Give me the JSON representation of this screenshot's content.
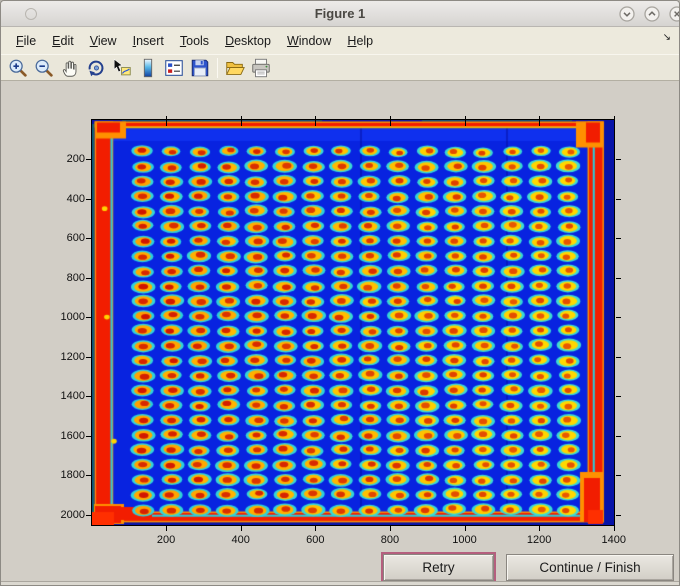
{
  "window": {
    "title": "Figure 1",
    "controls": [
      "minimize",
      "maximize",
      "close"
    ]
  },
  "menubar": {
    "items": [
      {
        "label": "File",
        "mnemonic": "F"
      },
      {
        "label": "Edit",
        "mnemonic": "E"
      },
      {
        "label": "View",
        "mnemonic": "V"
      },
      {
        "label": "Insert",
        "mnemonic": "I"
      },
      {
        "label": "Tools",
        "mnemonic": "T"
      },
      {
        "label": "Desktop",
        "mnemonic": "D"
      },
      {
        "label": "Window",
        "mnemonic": "W"
      },
      {
        "label": "Help",
        "mnemonic": "H"
      }
    ],
    "overflow_arrow": "↘"
  },
  "toolbar": {
    "icons": [
      "zoom-in",
      "zoom-out",
      "pan",
      "rotate-3d",
      "data-cursor",
      "insert-colorbar",
      "insert-legend",
      "save-figure",
      "open-file",
      "print-figure"
    ]
  },
  "buttons": {
    "retry_label": "Retry",
    "continue_label": "Continue / Finish"
  },
  "chart_data": {
    "type": "heatmap",
    "title": "",
    "xlabel": "",
    "ylabel": "",
    "colormap": "jet",
    "x_range": [
      0,
      1402
    ],
    "y_range": [
      0,
      2055
    ],
    "x_ticks": [
      200,
      400,
      600,
      800,
      1000,
      1200,
      1400
    ],
    "y_ticks": [
      200,
      400,
      600,
      800,
      1000,
      1200,
      1400,
      1600,
      1800,
      2000
    ],
    "description": "Intensity scan of a spotted microplate: 16 x 25 grid of hot spots (red cores, orange-yellow rings, cyan halos) on a deep blue background, with red saturation stripes along the plate edges.",
    "grid": {
      "cols": 16,
      "rows": 25,
      "x0": 137,
      "y0": 161,
      "dx": 76.2,
      "dy": 75.7,
      "spot_radius": 30
    },
    "stripes": {
      "left": {
        "x": 11,
        "w": 42
      },
      "right": {
        "x": 1335,
        "w": 36
      },
      "top": {
        "y": 15,
        "h": 16
      },
      "bottom": {
        "y": 1994,
        "h": 40
      }
    },
    "artifacts": [
      {
        "x": 34,
        "y": 450
      },
      {
        "x": 59,
        "y": 1630
      },
      {
        "x": 40,
        "y": 1000
      }
    ],
    "palette": {
      "margin_blue": "#0713a8",
      "plate_blue": "#0823e0",
      "plate_blue_top": "#0f30ee",
      "stripe_red": "#f21d00",
      "stripe_orange": "#ff9000",
      "corner_red": "#ff2f00",
      "halo_cyan_a": "#28cede",
      "halo_cyan_b": "#45e0cf",
      "ring_orange": "#ff9e00",
      "ring_yellow": "#ffd800",
      "core_red_a": "#d01200",
      "core_red_b": "#ee6a00",
      "artifact_yellow": "#ffd400",
      "edge_green": "#149646"
    }
  }
}
